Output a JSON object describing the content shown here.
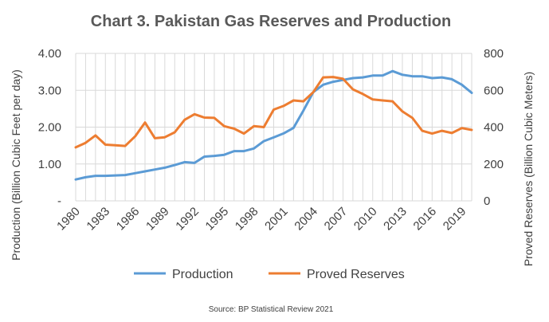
{
  "chart_data": {
    "type": "line",
    "title": "Chart 3. Pakistan Gas Reserves and Production",
    "source": "Source: BP Statistical Review 2021",
    "x": [
      1980,
      1981,
      1982,
      1983,
      1984,
      1985,
      1986,
      1987,
      1988,
      1989,
      1990,
      1991,
      1992,
      1993,
      1994,
      1995,
      1996,
      1997,
      1998,
      1999,
      2000,
      2001,
      2002,
      2003,
      2004,
      2005,
      2006,
      2007,
      2008,
      2009,
      2010,
      2011,
      2012,
      2013,
      2014,
      2015,
      2016,
      2017,
      2018,
      2019,
      2020
    ],
    "x_tick_labels": [
      "1980",
      "1983",
      "1986",
      "1989",
      "1992",
      "1995",
      "1998",
      "2001",
      "2004",
      "2007",
      "2010",
      "2013",
      "2016",
      "2019"
    ],
    "y_left": {
      "label": "Production (Billion Cubic Feet per day)",
      "ylim": [
        0,
        4
      ],
      "tick_labels": [
        "-",
        "1.00",
        "2.00",
        "3.00",
        "4.00"
      ]
    },
    "y_right": {
      "label": "Proved Reserves (Billion Cubic Meters)",
      "ylim": [
        0,
        800
      ],
      "tick_labels": [
        "0",
        "200",
        "400",
        "600",
        "800"
      ]
    },
    "series": [
      {
        "name": "Production",
        "axis": "left",
        "color": "#5B9BD5",
        "values": [
          0.58,
          0.64,
          0.68,
          0.68,
          0.69,
          0.7,
          0.75,
          0.8,
          0.85,
          0.9,
          0.97,
          1.05,
          1.03,
          1.2,
          1.22,
          1.25,
          1.35,
          1.35,
          1.42,
          1.62,
          1.72,
          1.83,
          1.98,
          2.45,
          2.95,
          3.15,
          3.23,
          3.28,
          3.33,
          3.35,
          3.4,
          3.4,
          3.52,
          3.42,
          3.38,
          3.38,
          3.33,
          3.35,
          3.3,
          3.15,
          2.93
        ]
      },
      {
        "name": "Proved Reserves",
        "axis": "right",
        "color": "#ED7D31",
        "values": [
          290,
          315,
          355,
          305,
          302,
          298,
          350,
          425,
          340,
          345,
          372,
          440,
          470,
          452,
          450,
          405,
          392,
          365,
          405,
          400,
          495,
          515,
          545,
          540,
          590,
          670,
          672,
          662,
          605,
          580,
          550,
          545,
          540,
          485,
          450,
          380,
          365,
          380,
          368,
          395,
          385
        ]
      }
    ],
    "legend": {
      "position": "bottom",
      "entries": [
        "Production",
        "Proved Reserves"
      ]
    },
    "grid": true
  }
}
